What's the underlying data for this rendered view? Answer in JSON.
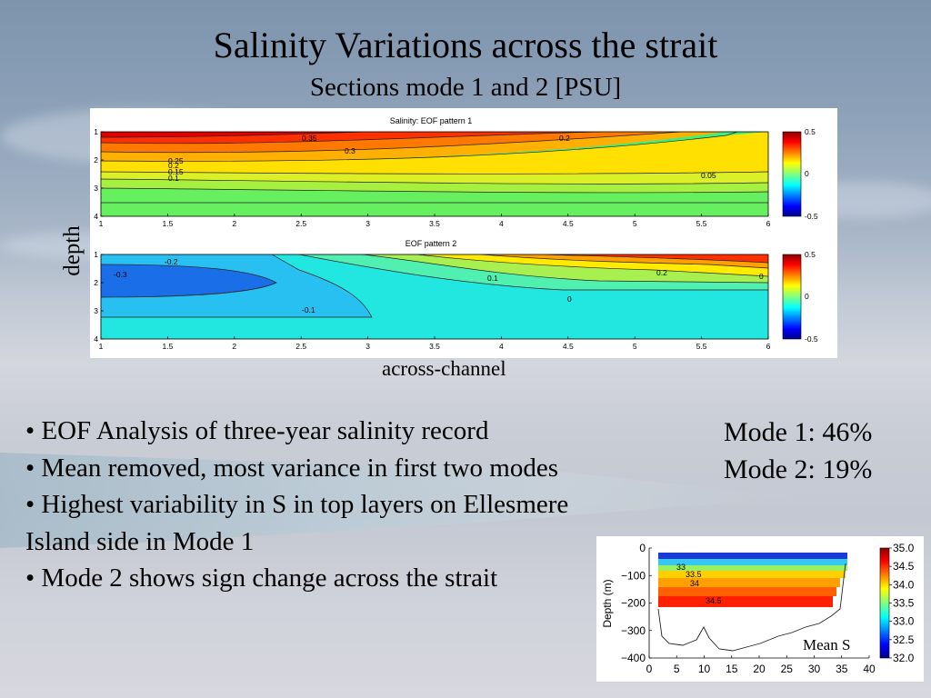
{
  "slide": {
    "title": "Salinity Variations across the strait",
    "subtitle": "Sections mode 1 and 2 [PSU]",
    "ylabel": "depth",
    "xlabel": "across-channel",
    "bullets": [
      "• EOF Analysis of three-year salinity record",
      "• Mean removed, most variance in first two modes",
      "• Highest variability in S in top layers on Ellesmere",
      "Island side in Mode 1",
      "• Mode 2 shows sign change across the strait"
    ],
    "mode1": "Mode 1: 46%",
    "mode2": "Mode 2: 19%",
    "mean_label": "Mean S"
  },
  "chart_data": [
    {
      "type": "heatmap",
      "title": "Salinity: EOF pattern 1",
      "x_ticks": [
        "1",
        "1.5",
        "2",
        "2.5",
        "3",
        "3.5",
        "4",
        "4.5",
        "5",
        "5.5",
        "6"
      ],
      "y_ticks": [
        "1",
        "2",
        "3",
        "4"
      ],
      "xlim": [
        1,
        6
      ],
      "ylim": [
        1,
        4
      ],
      "contour_labels": [
        "0.35",
        "0.3",
        "0.25",
        "0.2",
        "0.15",
        "0.1",
        "0.2",
        "0.05"
      ],
      "colorbar_ticks": [
        "0.5",
        "0",
        "-0.5"
      ],
      "colorbar_range": [
        -0.5,
        0.5
      ]
    },
    {
      "type": "heatmap",
      "title": "EOF pattern 2",
      "x_ticks": [
        "1",
        "1.5",
        "2",
        "2.5",
        "3",
        "3.5",
        "4",
        "4.5",
        "5",
        "5.5",
        "6"
      ],
      "y_ticks": [
        "1",
        "2",
        "3",
        "4"
      ],
      "xlim": [
        1,
        6
      ],
      "ylim": [
        1,
        4
      ],
      "contour_labels": [
        "-0.3",
        "-0.2",
        "-0.1",
        "0.1",
        "0",
        "0.2",
        "0"
      ],
      "colorbar_ticks": [
        "0.5",
        "0",
        "-0.5"
      ],
      "colorbar_range": [
        -0.5,
        0.5
      ]
    },
    {
      "type": "heatmap",
      "title": "",
      "xlabel": "",
      "ylabel": "Depth (m)",
      "x_ticks": [
        "0",
        "5",
        "10",
        "15",
        "20",
        "25",
        "30",
        "35",
        "40"
      ],
      "y_ticks": [
        "0",
        "−100",
        "−200",
        "−300",
        "−400"
      ],
      "xlim": [
        0,
        40
      ],
      "ylim": [
        -400,
        0
      ],
      "contour_labels": [
        "33",
        "33.5",
        "34",
        "34.5"
      ],
      "colorbar_ticks": [
        "35.0",
        "34.5",
        "34.0",
        "33.5",
        "33.0",
        "32.5",
        "32.0"
      ],
      "colorbar_range": [
        32.0,
        35.0
      ]
    }
  ]
}
